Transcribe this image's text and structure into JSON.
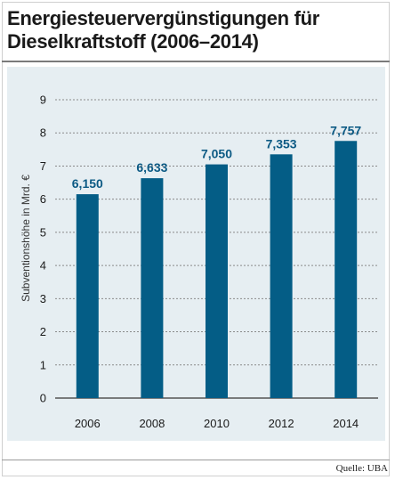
{
  "chart_data": {
    "type": "bar",
    "title": "Energiesteuervergünstigungen für Dieselkraftstoff (2006–2014)",
    "ylabel": "Subventionshöhe in Mrd. €",
    "xlabel": "",
    "categories": [
      "2006",
      "2008",
      "2010",
      "2012",
      "2014"
    ],
    "values": [
      6.15,
      6.633,
      7.05,
      7.353,
      7.757
    ],
    "data_labels": [
      "6,150",
      "6,633",
      "7,050",
      "7,353",
      "7,757"
    ],
    "yticks": [
      "0",
      "1",
      "2",
      "3",
      "4",
      "5",
      "6",
      "7",
      "8",
      "9"
    ],
    "ylim": [
      0,
      9
    ],
    "grid": "horizontal dashed",
    "legend": "none",
    "bar_color": "#045d86",
    "label_color": "#0c5a84"
  },
  "source": "Quelle: UBA"
}
